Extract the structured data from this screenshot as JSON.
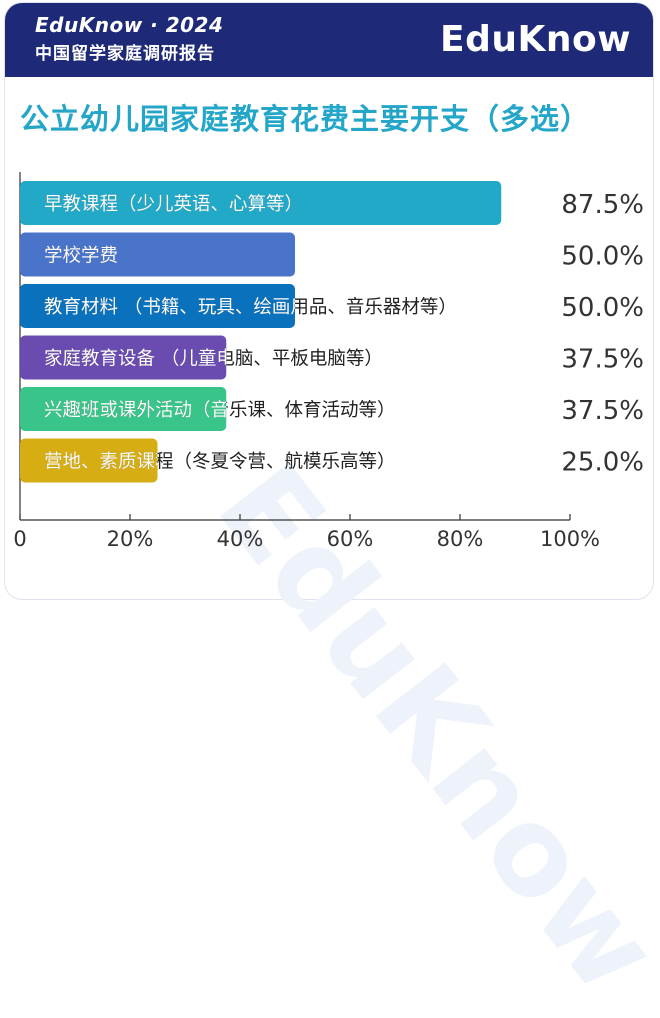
{
  "header": {
    "brand_line": "EduKnow · 2024",
    "report_line": "中国留学家庭调研报告",
    "logo_text": "EduKnow"
  },
  "chart_data": {
    "type": "bar",
    "orientation": "horizontal",
    "title": "公立幼儿园家庭教育花费主要开支（多选）",
    "categories": [
      "早教课程（少儿英语、心算等）",
      "学校学费",
      "教育材料 （书籍、玩具、绘画用品、音乐器材等）",
      "家庭教育设备 （儿童电脑、平板电脑等）",
      "兴趣班或课外活动（音乐课、体育活动等）",
      "营地、素质课程（冬夏令营、航模乐高等）"
    ],
    "values": [
      87.5,
      50.0,
      50.0,
      37.5,
      37.5,
      25.0
    ],
    "value_labels": [
      "87.5%",
      "50.0%",
      "50.0%",
      "37.5%",
      "37.5%",
      "25.0%"
    ],
    "colors": [
      "#22a9c7",
      "#4a74c9",
      "#0a72bd",
      "#6a4bb0",
      "#39c489",
      "#d6ae14"
    ],
    "xlim": [
      0,
      100
    ],
    "xticks": [
      "0",
      "20%",
      "40%",
      "60%",
      "80%",
      "100%"
    ],
    "xtick_values": [
      0,
      20,
      40,
      60,
      80,
      100
    ],
    "grid": false,
    "legend": "none"
  }
}
